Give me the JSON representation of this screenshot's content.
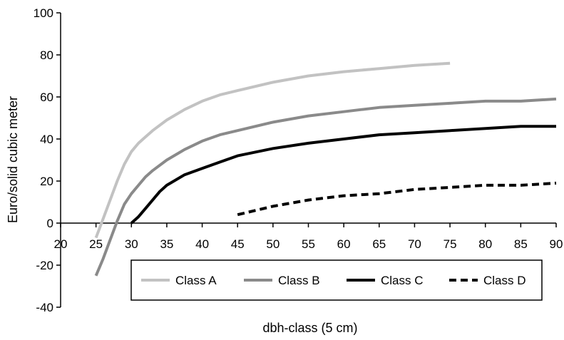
{
  "chart_data": {
    "type": "line",
    "xlabel": "dbh-class (5 cm)",
    "ylabel": "Euro/solid cubic meter",
    "xlim": [
      20,
      90
    ],
    "ylim": [
      -40,
      100
    ],
    "x_ticks": [
      "20",
      "25",
      "30",
      "35",
      "40",
      "45",
      "50",
      "55",
      "60",
      "65",
      "70",
      "75",
      "80",
      "85",
      "90"
    ],
    "y_ticks": [
      "-40",
      "-20",
      "0",
      "20",
      "40",
      "60",
      "80",
      "100"
    ],
    "grid": false,
    "legend_position": "bottom",
    "series": [
      {
        "name": "Class A",
        "color": "#c2c2c2",
        "dash": "solid",
        "x": [
          25,
          26,
          27,
          28,
          29,
          30,
          31,
          32,
          33,
          35,
          37.5,
          40,
          42.5,
          45,
          50,
          55,
          60,
          65,
          70,
          75
        ],
        "y": [
          -7,
          2,
          11,
          20,
          28,
          34,
          38,
          41,
          44,
          49,
          54,
          58,
          61,
          63,
          67,
          70,
          72,
          73.5,
          75,
          76
        ]
      },
      {
        "name": "Class B",
        "color": "#8a8a8a",
        "dash": "solid",
        "x": [
          25,
          26,
          27,
          28,
          29,
          30,
          31,
          32,
          33,
          35,
          37.5,
          40,
          42.5,
          45,
          50,
          55,
          60,
          62.5,
          65,
          70,
          75,
          80,
          85,
          90
        ],
        "y": [
          -25,
          -17,
          -8,
          1,
          9,
          14,
          18,
          22,
          25,
          30,
          35,
          39,
          42,
          44,
          48,
          51,
          53,
          54,
          55,
          56,
          57,
          58,
          58,
          59
        ]
      },
      {
        "name": "Class C",
        "color": "#000000",
        "dash": "solid",
        "x": [
          30,
          31,
          32,
          33,
          34,
          35,
          37.5,
          40,
          42.5,
          45,
          50,
          55,
          60,
          65,
          70,
          75,
          80,
          85,
          90
        ],
        "y": [
          0,
          3,
          7,
          11,
          15,
          18,
          23,
          26,
          29,
          32,
          35.5,
          38,
          40,
          42,
          43,
          44,
          45,
          46,
          46
        ]
      },
      {
        "name": "Class D",
        "color": "#000000",
        "dash": "dashed",
        "x": [
          45,
          50,
          55,
          60,
          65,
          70,
          75,
          80,
          85,
          90
        ],
        "y": [
          4,
          8,
          11,
          13,
          14,
          16,
          17,
          18,
          18,
          19
        ]
      }
    ]
  }
}
